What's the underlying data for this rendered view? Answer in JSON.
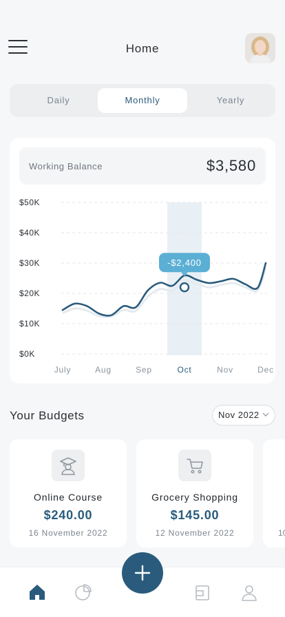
{
  "header": {
    "title": "Home",
    "menu_icon": "hamburger-menu-icon",
    "avatar": "user-avatar"
  },
  "tabs": [
    {
      "label": "Daily",
      "active": false
    },
    {
      "label": "Monthly",
      "active": true
    },
    {
      "label": "Yearly",
      "active": false
    }
  ],
  "balance": {
    "label": "Working Balance",
    "value": "$3,580"
  },
  "chart_data": {
    "type": "line",
    "categories": [
      "July",
      "Aug",
      "Sep",
      "Oct",
      "Nov",
      "Dec"
    ],
    "ylim": [
      0,
      50000
    ],
    "yticks": [
      "$0K",
      "$10K",
      "$20K",
      "$30K",
      "$40K",
      "$50K"
    ],
    "x": [
      0,
      0.3,
      0.6,
      0.9,
      1.2,
      1.5,
      1.8,
      2.1,
      2.4,
      2.7,
      3.0,
      3.3,
      3.6,
      3.9,
      4.2,
      4.5,
      4.8,
      5.0
    ],
    "series": [
      {
        "values": [
          14500,
          16600,
          15800,
          13300,
          12800,
          15800,
          15400,
          21000,
          23500,
          22500,
          25900,
          24500,
          23400,
          24000,
          24800,
          23000,
          21800,
          30000
        ]
      }
    ],
    "ghost_values": [
      13500,
      15000,
      14300,
      12500,
      12400,
      14500,
      14200,
      19000,
      21400,
      21000,
      24000,
      23200,
      22000,
      22800,
      23400,
      22000,
      21000,
      28500
    ],
    "highlight": {
      "category": "Oct",
      "value": 22000,
      "label": "-$2,400"
    },
    "grid": true,
    "colors": {
      "line": "#2a5b7c",
      "ghost": "#e4eaef",
      "highlight": "#e9f0f5",
      "tooltip": "#5bafd4",
      "active_tick": "#2a5b7c"
    }
  },
  "budgets": {
    "title": "Your Budgets",
    "month": "Nov 2022",
    "items": [
      {
        "name": "Online Course",
        "amount": "$240.00",
        "date": "16 November 2022",
        "icon": "graduation-icon"
      },
      {
        "name": "Grocery Shopping",
        "amount": "$145.00",
        "date": "12 November 2022",
        "icon": "cart-icon"
      },
      {
        "name": "",
        "amount": "",
        "date": "10",
        "icon": ""
      }
    ]
  },
  "nav": {
    "items": [
      {
        "icon": "home-icon",
        "active": true
      },
      {
        "icon": "pie-chart-icon",
        "active": false
      },
      {
        "icon": "add-icon",
        "active": false
      },
      {
        "icon": "wallet-icon",
        "active": false
      },
      {
        "icon": "profile-icon",
        "active": false
      }
    ]
  },
  "colors": {
    "accent": "#2a5b7c",
    "background": "#f6f7f8"
  }
}
